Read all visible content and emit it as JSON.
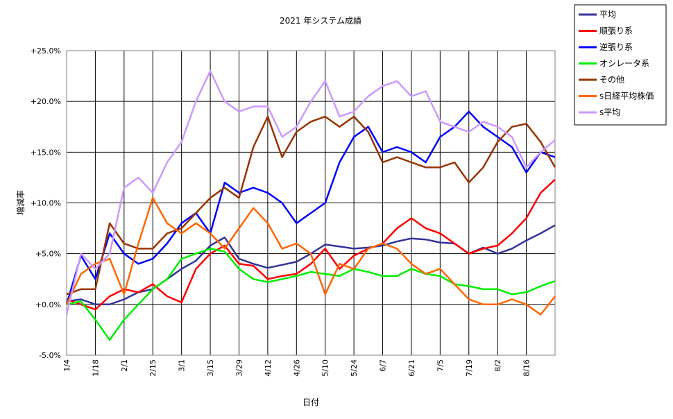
{
  "chart_data": {
    "type": "line",
    "title": "2021 年システム成績",
    "xlabel": "日付",
    "ylabel": "増減率",
    "ylim": [
      -5,
      25
    ],
    "y_ticks": [
      {
        "value": 25,
        "label": "+25.0%",
        "color": "#000000"
      },
      {
        "value": 20,
        "label": "+20.0%",
        "color": "#000000"
      },
      {
        "value": 15,
        "label": "+15.0%",
        "color": "#000000"
      },
      {
        "value": 10,
        "label": "+10.0%",
        "color": "#000000"
      },
      {
        "value": 5,
        "label": "+5.0%",
        "color": "#000000"
      },
      {
        "value": 0,
        "label": "+0.0%",
        "color": "#000000"
      },
      {
        "value": -5,
        "label": "-5.0%",
        "color": "#ff0000"
      }
    ],
    "x_ticks": [
      "1/4",
      "1/18",
      "2/1",
      "2/15",
      "3/1",
      "3/15",
      "3/29",
      "4/12",
      "4/26",
      "5/10",
      "5/24",
      "6/7",
      "6/21",
      "7/5",
      "7/19",
      "8/2",
      "8/16"
    ],
    "x_range": [
      0,
      17
    ],
    "grid": true,
    "legend_position": "top-right",
    "series": [
      {
        "name": "平均",
        "color": "#333399",
        "x": [
          0,
          0.5,
          1,
          1.5,
          2,
          2.5,
          3,
          3.5,
          4,
          4.5,
          5,
          5.5,
          6,
          6.5,
          7,
          7.5,
          8,
          8.5,
          9,
          9.5,
          10,
          10.5,
          11,
          11.5,
          12,
          12.5,
          13,
          13.5,
          14,
          14.5,
          15,
          15.5,
          16,
          16.5,
          17
        ],
        "values": [
          0.3,
          0.5,
          0.0,
          0.0,
          0.5,
          1.2,
          1.5,
          2.5,
          3.5,
          4.3,
          5.8,
          6.6,
          4.5,
          4.0,
          3.6,
          3.9,
          4.2,
          5.0,
          5.9,
          5.7,
          5.5,
          5.6,
          5.8,
          6.2,
          6.5,
          6.4,
          6.1,
          6.0,
          5.0,
          5.6,
          5.0,
          5.5,
          6.3,
          7.0,
          7.8
        ]
      },
      {
        "name": "順張り系",
        "color": "#ff0000",
        "x": [
          0,
          0.5,
          1,
          1.5,
          2,
          2.5,
          3,
          3.5,
          4,
          4.5,
          5,
          5.5,
          6,
          6.5,
          7,
          7.5,
          8,
          8.5,
          9,
          9.5,
          10,
          10.5,
          11,
          11.5,
          12,
          12.5,
          13,
          13.5,
          14,
          14.5,
          15,
          15.5,
          16,
          16.5,
          17
        ],
        "values": [
          0.5,
          0.0,
          -0.5,
          0.8,
          1.5,
          1.2,
          2.0,
          0.8,
          0.2,
          3.5,
          5.0,
          5.8,
          4.0,
          3.8,
          2.5,
          2.8,
          3.0,
          4.0,
          5.5,
          3.5,
          4.8,
          5.5,
          6.0,
          7.5,
          8.5,
          7.5,
          7.0,
          6.0,
          5.0,
          5.5,
          5.8,
          7.0,
          8.5,
          11.0,
          12.3
        ]
      },
      {
        "name": "逆張り系",
        "color": "#0000ff",
        "x": [
          0,
          0.5,
          1,
          1.5,
          2,
          2.5,
          3,
          3.5,
          4,
          4.5,
          5,
          5.5,
          6,
          6.5,
          7,
          7.5,
          8,
          8.5,
          9,
          9.5,
          10,
          10.5,
          11,
          11.5,
          12,
          12.5,
          13,
          13.5,
          14,
          14.5,
          15,
          15.5,
          16,
          16.5,
          17
        ],
        "values": [
          0.0,
          4.8,
          2.5,
          7.0,
          5.0,
          4.0,
          4.5,
          6.0,
          8.0,
          9.0,
          7.0,
          12.0,
          11.0,
          11.5,
          11.0,
          10.0,
          8.0,
          9.0,
          10.0,
          14.0,
          16.5,
          17.5,
          15.0,
          15.5,
          15.0,
          14.0,
          16.5,
          17.5,
          19.0,
          17.5,
          16.5,
          15.5,
          13.0,
          15.0,
          14.5
        ]
      },
      {
        "name": "オシレータ系",
        "color": "#00ee00",
        "x": [
          0,
          0.5,
          1,
          1.5,
          2,
          2.5,
          3,
          3.5,
          4,
          4.5,
          5,
          5.5,
          6,
          6.5,
          7,
          7.5,
          8,
          8.5,
          9,
          9.5,
          10,
          10.5,
          11,
          11.5,
          12,
          12.5,
          13,
          13.5,
          14,
          14.5,
          15,
          15.5,
          16,
          16.5,
          17
        ],
        "values": [
          0.0,
          0.3,
          -1.5,
          -3.5,
          -1.5,
          0.0,
          1.5,
          2.5,
          4.5,
          5.0,
          5.5,
          5.2,
          3.5,
          2.5,
          2.2,
          2.5,
          2.8,
          3.2,
          3.0,
          2.8,
          3.5,
          3.2,
          2.8,
          2.8,
          3.5,
          3.0,
          2.8,
          2.0,
          1.8,
          1.5,
          1.5,
          1.0,
          1.2,
          1.8,
          2.3
        ]
      },
      {
        "name": "その他",
        "color": "#993300",
        "x": [
          0,
          0.5,
          1,
          1.5,
          2,
          2.5,
          3,
          3.5,
          4,
          4.5,
          5,
          5.5,
          6,
          6.5,
          7,
          7.5,
          8,
          8.5,
          9,
          9.5,
          10,
          10.5,
          11,
          11.5,
          12,
          12.5,
          13,
          13.5,
          14,
          14.5,
          15,
          15.5,
          16,
          16.5,
          17
        ],
        "values": [
          1.0,
          1.5,
          1.5,
          8.0,
          6.0,
          5.5,
          5.5,
          7.0,
          7.5,
          9.0,
          10.5,
          11.5,
          10.5,
          15.5,
          18.5,
          14.5,
          17.0,
          18.0,
          18.5,
          17.5,
          18.5,
          17.0,
          14.0,
          14.5,
          14.0,
          13.5,
          13.5,
          14.0,
          12.0,
          13.5,
          16.0,
          17.5,
          17.8,
          16.0,
          13.5
        ]
      },
      {
        "name": "s日経平均株価",
        "color": "#ff6600",
        "x": [
          0,
          0.5,
          1,
          1.5,
          2,
          2.5,
          3,
          3.5,
          4,
          4.5,
          5,
          5.5,
          6,
          6.5,
          7,
          7.5,
          8,
          8.5,
          9,
          9.5,
          10,
          10.5,
          11,
          11.5,
          12,
          12.5,
          13,
          13.5,
          14,
          14.5,
          15,
          15.5,
          16,
          16.5,
          17
        ],
        "values": [
          0.0,
          3.0,
          4.0,
          4.5,
          1.0,
          6.0,
          10.5,
          8.0,
          7.0,
          8.0,
          7.0,
          5.5,
          7.5,
          9.5,
          8.0,
          5.5,
          6.0,
          5.0,
          1.0,
          4.0,
          3.5,
          5.5,
          6.0,
          5.5,
          4.0,
          3.0,
          3.5,
          2.0,
          0.5,
          0.0,
          0.0,
          0.5,
          0.0,
          -1.0,
          0.8
        ]
      },
      {
        "name": "s平均",
        "color": "#cc99ff",
        "x": [
          0,
          0.5,
          1,
          1.5,
          2,
          2.5,
          3,
          3.5,
          4,
          4.5,
          5,
          5.5,
          6,
          6.5,
          7,
          7.5,
          8,
          8.5,
          9,
          9.5,
          10,
          10.5,
          11,
          11.5,
          12,
          12.5,
          13,
          13.5,
          14,
          14.5,
          15,
          15.5,
          16,
          16.5,
          17
        ],
        "values": [
          -1.0,
          5.0,
          3.5,
          5.0,
          11.5,
          12.5,
          11.0,
          14.0,
          16.0,
          20.0,
          23.0,
          20.0,
          19.0,
          19.5,
          19.5,
          16.5,
          17.5,
          20.0,
          22.0,
          18.5,
          19.0,
          20.5,
          21.5,
          22.0,
          20.5,
          21.0,
          18.0,
          17.5,
          17.0,
          18.0,
          17.5,
          16.5,
          13.5,
          15.0,
          16.2
        ]
      }
    ]
  }
}
